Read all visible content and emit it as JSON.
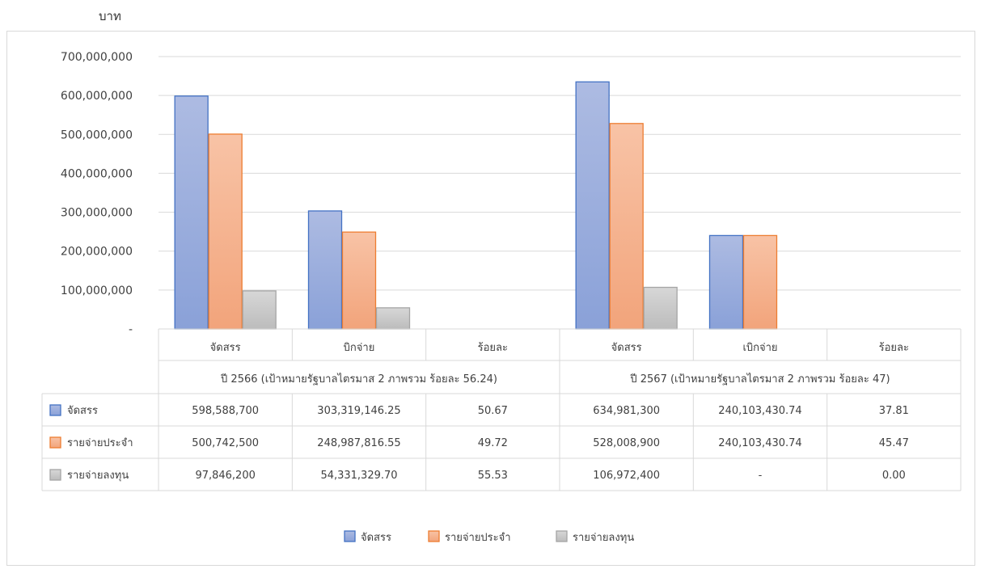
{
  "unit_label": "บาท",
  "colors": {
    "allocated": "#4472c4",
    "regular": "#ed7d31",
    "investment": "#a5a5a5"
  },
  "chart_data": {
    "type": "bar",
    "title": "",
    "ylabel": "บาท",
    "ylim": [
      0,
      700000000
    ],
    "yticks": [
      "-",
      "100,000,000",
      "200,000,000",
      "300,000,000",
      "400,000,000",
      "500,000,000",
      "600,000,000",
      "700,000,000"
    ],
    "groups": [
      "ปี 2566 (เป้าหมายรัฐบาลไตรมาส 2 ภาพรวม ร้อยละ 56.24)",
      "ปี 2567 (เป้าหมายรัฐบาลไตรมาส 2 ภาพรวม ร้อยละ 47)"
    ],
    "categories": [
      "จัดสรร",
      "บิกจ่าย",
      "ร้อยละ",
      "จัดสรร",
      "เบิกจ่าย",
      "ร้อยละ"
    ],
    "grid": true,
    "legend_position": "bottom",
    "series": [
      {
        "name": "จัดสรร",
        "color": "#4472c4",
        "values": [
          598588700,
          303319146.25,
          50.67,
          634981300,
          240103430.74,
          37.81
        ],
        "labels": [
          "598,588,700",
          "303,319,146.25",
          "50.67",
          "634,981,300",
          "240,103,430.74",
          "37.81"
        ]
      },
      {
        "name": "รายจ่ายประจำ",
        "color": "#ed7d31",
        "values": [
          500742500,
          248987816.55,
          49.72,
          528008900,
          240103430.74,
          45.47
        ],
        "labels": [
          "500,742,500",
          "248,987,816.55",
          "49.72",
          "528,008,900",
          "240,103,430.74",
          "45.47"
        ]
      },
      {
        "name": "รายจ่ายลงทุน",
        "color": "#a5a5a5",
        "values": [
          97846200,
          54331329.7,
          55.53,
          106972400,
          0,
          0
        ],
        "labels": [
          "97,846,200",
          "54,331,329.70",
          "55.53",
          "106,972,400",
          "-",
          "0.00"
        ]
      }
    ]
  }
}
